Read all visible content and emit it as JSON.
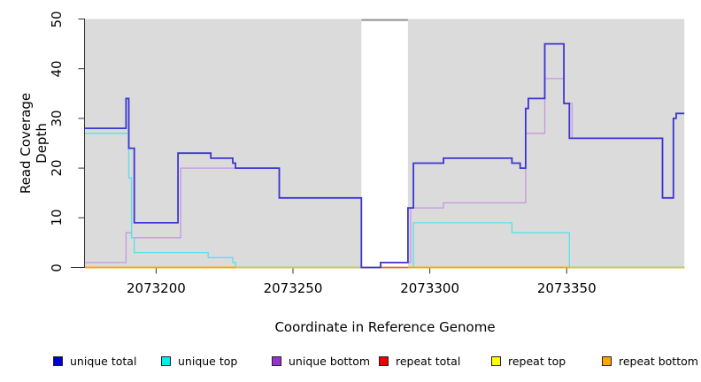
{
  "figure": {
    "background": "#FFFFFF",
    "panel_color": "#DBDBDB",
    "axis_color": "#333333",
    "masked_region_fill": "#FFFFFF",
    "masked_region_cap_color": "#9A9A9A"
  },
  "chart_data": {
    "type": "step-line",
    "title": "",
    "xlabel": "Coordinate in Reference Genome",
    "ylabel": "Read Coverage Depth",
    "xlim": [
      2073174,
      2073393
    ],
    "ylim": [
      0,
      50
    ],
    "x_ticks": [
      "2073200",
      "2073250",
      "2073300",
      "2073350"
    ],
    "x_tick_values": [
      2073200,
      2073250,
      2073300,
      2073350
    ],
    "y_ticks": [
      "0",
      "10",
      "20",
      "30",
      "40",
      "50"
    ],
    "y_tick_values": [
      0,
      10,
      20,
      30,
      40,
      50
    ],
    "grid": false,
    "legend_position": "bottom",
    "masked_region": {
      "from": 2073275,
      "to": 2073292
    },
    "series": [
      {
        "name": "unique total",
        "legend_color": "#0000CD",
        "line_color": "#3A35D1",
        "line_width": 1.8,
        "points": [
          [
            2073174,
            28
          ],
          [
            2073189,
            34
          ],
          [
            2073190,
            24
          ],
          [
            2073192,
            9
          ],
          [
            2073208,
            23
          ],
          [
            2073220,
            22
          ],
          [
            2073228,
            21
          ],
          [
            2073229,
            20
          ],
          [
            2073245,
            14
          ],
          [
            2073275,
            0
          ],
          [
            2073282,
            1
          ],
          [
            2073292,
            12
          ],
          [
            2073294,
            21
          ],
          [
            2073305,
            22
          ],
          [
            2073330,
            21
          ],
          [
            2073333,
            20
          ],
          [
            2073335,
            32
          ],
          [
            2073336,
            34
          ],
          [
            2073342,
            45
          ],
          [
            2073349,
            33
          ],
          [
            2073351,
            26
          ],
          [
            2073385,
            14
          ],
          [
            2073389,
            30
          ],
          [
            2073390,
            31
          ],
          [
            2073393,
            31
          ]
        ]
      },
      {
        "name": "unique top",
        "legend_color": "#00EEEE",
        "line_color": "#55E2EA",
        "line_width": 1.3,
        "points": [
          [
            2073174,
            27
          ],
          [
            2073190,
            18
          ],
          [
            2073191,
            6
          ],
          [
            2073192,
            3
          ],
          [
            2073219,
            2
          ],
          [
            2073228,
            1
          ],
          [
            2073229,
            0
          ],
          [
            2073294,
            9
          ],
          [
            2073330,
            7
          ],
          [
            2073351,
            0
          ],
          [
            2073393,
            0
          ]
        ]
      },
      {
        "name": "unique bottom",
        "legend_color": "#9932CC",
        "line_color": "#C697E3",
        "line_width": 1.3,
        "points": [
          [
            2073174,
            1
          ],
          [
            2073189,
            7
          ],
          [
            2073191,
            6
          ],
          [
            2073209,
            20
          ],
          [
            2073229,
            20
          ],
          [
            2073245,
            14
          ],
          [
            2073275,
            0
          ],
          [
            2073282,
            1
          ],
          [
            2073293,
            12
          ],
          [
            2073305,
            13
          ],
          [
            2073335,
            27
          ],
          [
            2073342,
            38
          ],
          [
            2073349,
            33
          ],
          [
            2073352,
            26
          ],
          [
            2073385,
            14
          ],
          [
            2073389,
            30
          ],
          [
            2073390,
            31
          ],
          [
            2073393,
            31
          ]
        ]
      },
      {
        "name": "repeat total",
        "legend_color": "#EE0000",
        "line_color": "#EE0000",
        "line_width": 1.4,
        "points": [
          [
            2073174,
            0
          ],
          [
            2073393,
            0
          ]
        ]
      },
      {
        "name": "repeat top",
        "legend_color": "#FFFF00",
        "line_color": "#FFFF00",
        "line_width": 1.4,
        "points": [
          [
            2073174,
            0
          ],
          [
            2073393,
            0
          ]
        ]
      },
      {
        "name": "repeat bottom",
        "legend_color": "#FFA500",
        "line_color": "#FFA500",
        "line_width": 1.5,
        "points": [
          [
            2073174,
            0
          ],
          [
            2073393,
            0
          ]
        ]
      }
    ],
    "baseline_overlays": [
      {
        "name": "unique-top-at-zero blend",
        "color": "#93D99C",
        "from": 2073229,
        "to": 2073282
      },
      {
        "name": "masked-gap-zero blend",
        "color": "#E35C7C",
        "from": 2073282,
        "to": 2073292
      },
      {
        "name": "unique-top-at-zero blend",
        "color": "#93D99C",
        "from": 2073351,
        "to": 2073393
      }
    ],
    "draw_order": [
      "unique bottom",
      "unique top",
      "repeat total",
      "repeat top",
      "repeat bottom",
      "__overlays__",
      "unique total"
    ]
  }
}
